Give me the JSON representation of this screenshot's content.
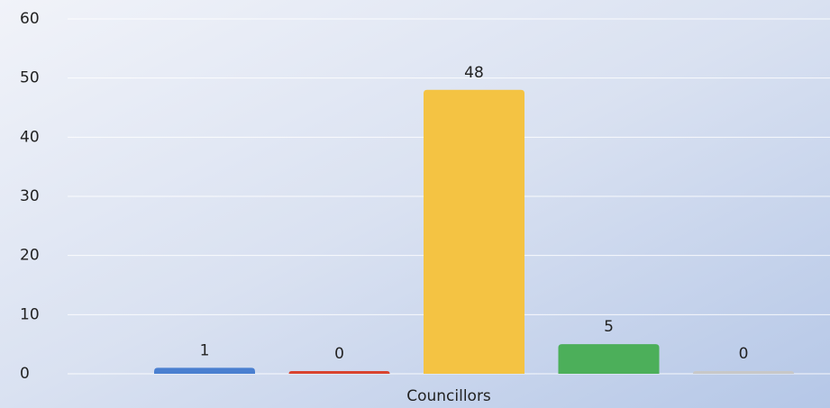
{
  "chart_data": {
    "type": "bar",
    "categories": [
      "Councillors"
    ],
    "series": [
      {
        "color": "#4a7fd0",
        "values": [
          1
        ]
      },
      {
        "color": "#d9432f",
        "values": [
          0
        ]
      },
      {
        "color": "#f4c343",
        "values": [
          48
        ]
      },
      {
        "color": "#4caf5a",
        "values": [
          5
        ]
      },
      {
        "color": "#c8c8c8",
        "values": [
          0
        ]
      }
    ],
    "ylim": [
      0,
      60
    ],
    "yticks": [
      0,
      10,
      20,
      30,
      40,
      50,
      60
    ],
    "grid": true
  }
}
